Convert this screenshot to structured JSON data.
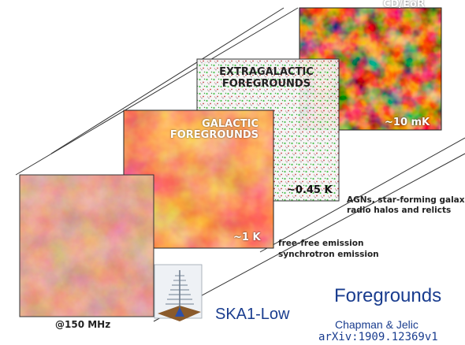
{
  "panels": {
    "cd_eor": {
      "title": "CD/EoR",
      "temp": "~10 mK"
    },
    "extragalactic": {
      "title_line1": "EXTRAGALACTIC",
      "title_line2": "FOREGROUNDS",
      "temp": "~0.45 K"
    },
    "galactic": {
      "title_line1": "GALACTIC",
      "title_line2": "FOREGROUNDS",
      "temp": "~1 K"
    },
    "front": {
      "freq": "@150 MHz"
    }
  },
  "notes": {
    "extragalactic_line1": "AGNs, star-forming galaxies,",
    "extragalactic_line2": "radio halos and relicts",
    "galactic_line1": "free-free emission",
    "galactic_line2": "synchrotron emission"
  },
  "instrument_label": "SKA1-Low",
  "heading": "Foregrounds",
  "citation": {
    "authors": "Chapman & Jelic",
    "arxiv": "arXiv:1909.12369v1"
  },
  "colors": {
    "heading_blue": "#1a3d8f",
    "eor_dark": "#3a0d02",
    "galactic_red": "#c23a18"
  }
}
